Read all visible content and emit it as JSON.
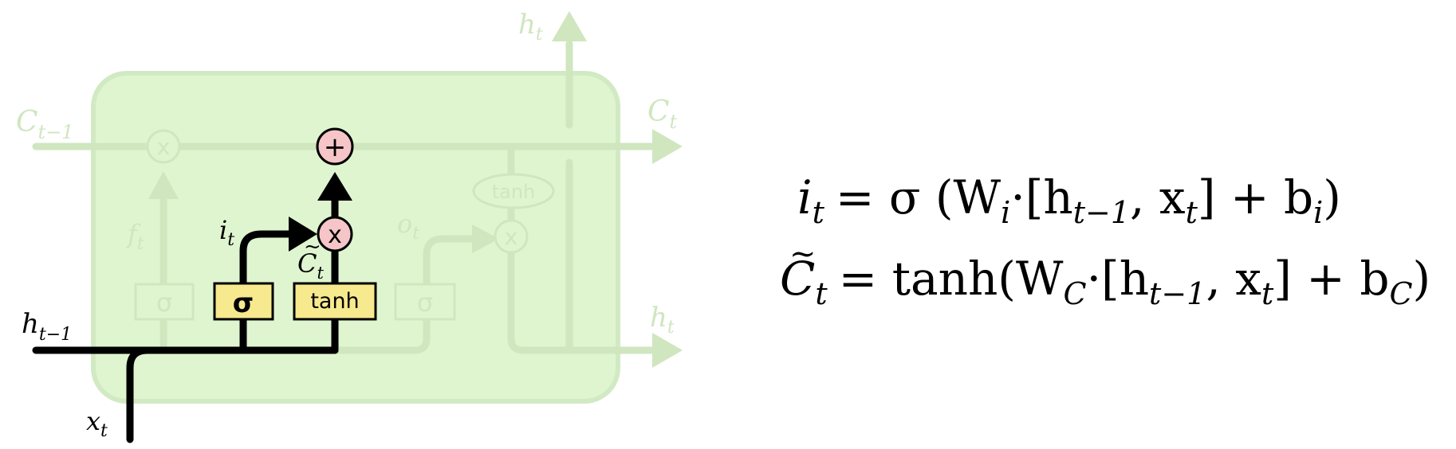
{
  "diagram": {
    "labels": {
      "h_t_top": "h",
      "h_t_top_sub": "t",
      "c_prev": "C",
      "c_prev_sub": "t−1",
      "c_t": "C",
      "c_t_sub": "t",
      "h_t_right": "h",
      "h_t_right_sub": "t",
      "h_prev": "h",
      "h_prev_sub": "t−1",
      "x_t": "x",
      "x_t_sub": "t",
      "f_t": "f",
      "f_t_sub": "t",
      "i_t": "i",
      "i_t_sub": "t",
      "o_t": "o",
      "o_t_sub": "t",
      "c_tilde": "C",
      "c_tilde_sub": "t"
    },
    "gates": {
      "forget_sigma": "σ",
      "input_sigma": "σ",
      "tanh_layer": "tanh",
      "output_sigma": "σ",
      "tanh_oval": "tanh"
    },
    "ops": {
      "forget_mult": "x",
      "add": "+",
      "input_mult": "x",
      "output_mult": "x"
    },
    "colors": {
      "cell_bg": "#dff5d0",
      "faded": "#cfe6bf",
      "active": "#000000",
      "gate_fill": "#f7e98e",
      "op_fill": "#f5c5c8"
    }
  },
  "equations": {
    "eq1": {
      "lhs": "i",
      "lhs_sub": "t",
      "rhs_pre": "= σ (W",
      "w_sub": "i",
      "rhs_mid": "·[h",
      "h_sub": "t−1",
      "comma_x": ", x",
      "x_sub": "t",
      "rhs_post": "]  +  b",
      "b_sub": "i",
      "close": ")"
    },
    "eq2": {
      "lhs": "C",
      "lhs_sub": "t",
      "rhs_pre": "= tanh(W",
      "w_sub": "C",
      "rhs_mid": "·[h",
      "h_sub": "t−1",
      "comma_x": ", x",
      "x_sub": "t",
      "rhs_post": "]  +  b",
      "b_sub": "C",
      "close": ")"
    }
  }
}
